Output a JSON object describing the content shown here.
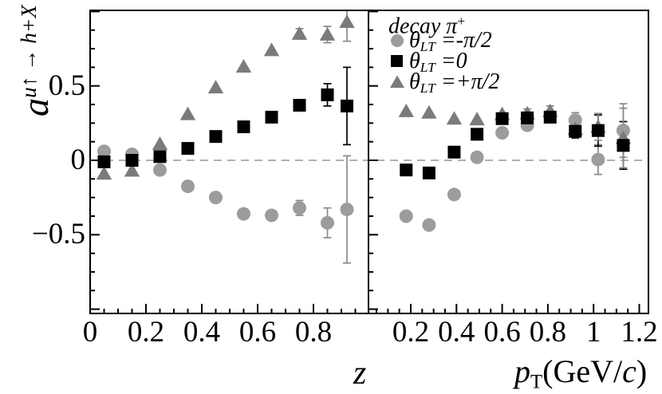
{
  "figure": {
    "background": "#ffffff",
    "frame_color": "#000000",
    "zero_line_color": "#b0b0b0",
    "errorbar_gray": "#8a8a8a"
  },
  "y_axis": {
    "title": "a^{u↑ → h+X}",
    "title_parts": [
      {
        "t": "a",
        "i": true,
        "big": true
      },
      {
        "t": "u↑ → h+X",
        "i": true,
        "script": "sup"
      }
    ],
    "ticks": [
      {
        "label": "0.5",
        "value": 0.5
      },
      {
        "label": "0",
        "value": 0
      },
      {
        "label": "−0.5",
        "value": -0.5
      }
    ],
    "minor_step": 0.125,
    "range": [
      -1.03,
      1.01
    ]
  },
  "x_axis_left": {
    "title": "z",
    "ticks": [
      {
        "label": "0",
        "value": 0
      },
      {
        "label": "0.2",
        "value": 0.2
      },
      {
        "label": "0.4",
        "value": 0.4
      },
      {
        "label": "0.6",
        "value": 0.6
      },
      {
        "label": "0.8",
        "value": 0.8
      }
    ],
    "minor_step": 0.05,
    "range": [
      0,
      0.997
    ]
  },
  "x_axis_right": {
    "title": "p_T(GeV/c)",
    "title_parts": [
      {
        "t": "p",
        "i": true
      },
      {
        "t": "T",
        "script": "sub"
      },
      {
        "t": "(GeV/"
      },
      {
        "t": "c",
        "i": true
      },
      {
        "t": ")"
      }
    ],
    "ticks": [
      {
        "label": "0.2",
        "value": 0.2
      },
      {
        "label": "0.4",
        "value": 0.4
      },
      {
        "label": "0.6",
        "value": 0.6
      },
      {
        "label": "0.8",
        "value": 0.8
      },
      {
        "label": "1",
        "value": 1.0
      },
      {
        "label": "1.2",
        "value": 1.2
      }
    ],
    "minor_step": 0.05,
    "range": [
      0.015,
      1.24
    ]
  },
  "legend": {
    "title": "decay π+",
    "title_parts": [
      {
        "t": "decay ",
        "i": true
      },
      {
        "t": "π",
        "i": true
      },
      {
        "t": "+",
        "script": "sup"
      }
    ],
    "items": [
      {
        "marker": "circle",
        "color": "#9c9c9c",
        "label": "θ_LT = -π/2",
        "label_parts": [
          {
            "t": "θ",
            "i": true
          },
          {
            "t": "LT",
            "i": true,
            "script": "sub"
          },
          {
            "t": " =-π/2",
            "i": true
          }
        ]
      },
      {
        "marker": "square",
        "color": "#000000",
        "label": "θ_LT = 0",
        "label_parts": [
          {
            "t": "θ",
            "i": true
          },
          {
            "t": "LT",
            "i": true,
            "script": "sub"
          },
          {
            "t": " =0",
            "i": true
          }
        ]
      },
      {
        "marker": "triangle",
        "color": "#7b7b7b",
        "label": "θ_LT = +π/2",
        "label_parts": [
          {
            "t": "θ",
            "i": true
          },
          {
            "t": "LT",
            "i": true,
            "script": "sub"
          },
          {
            "t": " =+π/2",
            "i": true
          }
        ]
      }
    ]
  },
  "chart_data": [
    {
      "type": "scatter",
      "panel": "left",
      "xlabel": "z",
      "xlim": [
        0,
        0.997
      ],
      "ylim": [
        -1.03,
        1.01
      ],
      "x": [
        0.05,
        0.15,
        0.25,
        0.35,
        0.45,
        0.55,
        0.65,
        0.75,
        0.85,
        0.92
      ],
      "series": [
        {
          "name": "θ_LT = -π/2",
          "marker": "circle",
          "color": "#9c9c9c",
          "values": [
            0.06,
            0.04,
            -0.065,
            -0.175,
            -0.25,
            -0.36,
            -0.37,
            -0.32,
            -0.42,
            -0.33
          ],
          "errors": [
            0,
            0,
            0,
            0,
            0,
            0,
            0,
            0.05,
            0.1,
            0.36
          ]
        },
        {
          "name": "θ_LT = 0",
          "marker": "square",
          "color": "#000000",
          "values": [
            -0.01,
            0.0,
            0.025,
            0.08,
            0.16,
            0.225,
            0.29,
            0.37,
            0.44,
            0.365
          ],
          "errors": [
            0,
            0,
            0,
            0,
            0,
            0,
            0,
            0.03,
            0.075,
            0.26
          ]
        },
        {
          "name": "θ_LT = +π/2",
          "marker": "triangle",
          "color": "#7b7b7b",
          "values": [
            -0.09,
            -0.07,
            0.11,
            0.31,
            0.49,
            0.63,
            0.74,
            0.85,
            0.845,
            0.93
          ],
          "errors": [
            0,
            0,
            0,
            0,
            0,
            0,
            0,
            0.035,
            0.055,
            0.13
          ]
        }
      ]
    },
    {
      "type": "scatter",
      "panel": "right",
      "xlabel": "p_T (GeV/c)",
      "xlim": [
        0.015,
        1.24
      ],
      "ylim": [
        -1.03,
        1.01
      ],
      "x": [
        0.18,
        0.28,
        0.39,
        0.49,
        0.6,
        0.71,
        0.81,
        0.92,
        1.02,
        1.13
      ],
      "series": [
        {
          "name": "θ_LT = -π/2",
          "marker": "circle",
          "color": "#9c9c9c",
          "values": [
            -0.375,
            -0.435,
            -0.23,
            0.02,
            0.185,
            0.235,
            0.3,
            0.27,
            0.005,
            0.2
          ],
          "errors": [
            0,
            0,
            0,
            0,
            0,
            0.03,
            0.035,
            0.05,
            0.1,
            0.18
          ]
        },
        {
          "name": "θ_LT = 0",
          "marker": "square",
          "color": "#000000",
          "values": [
            -0.065,
            -0.085,
            0.055,
            0.175,
            0.28,
            0.285,
            0.29,
            0.195,
            0.2,
            0.1
          ],
          "errors": [
            0,
            0,
            0,
            0,
            0,
            0.03,
            0.035,
            0.045,
            0.105,
            0.16
          ]
        },
        {
          "name": "θ_LT = +π/2",
          "marker": "triangle",
          "color": "#7b7b7b",
          "values": [
            0.33,
            0.32,
            0.28,
            0.275,
            0.31,
            0.315,
            0.33,
            0.21,
            0.225,
            0.15
          ],
          "errors": [
            0,
            0,
            0,
            0,
            0,
            0.03,
            0.035,
            0.05,
            0.09,
            0.2
          ]
        }
      ]
    }
  ]
}
